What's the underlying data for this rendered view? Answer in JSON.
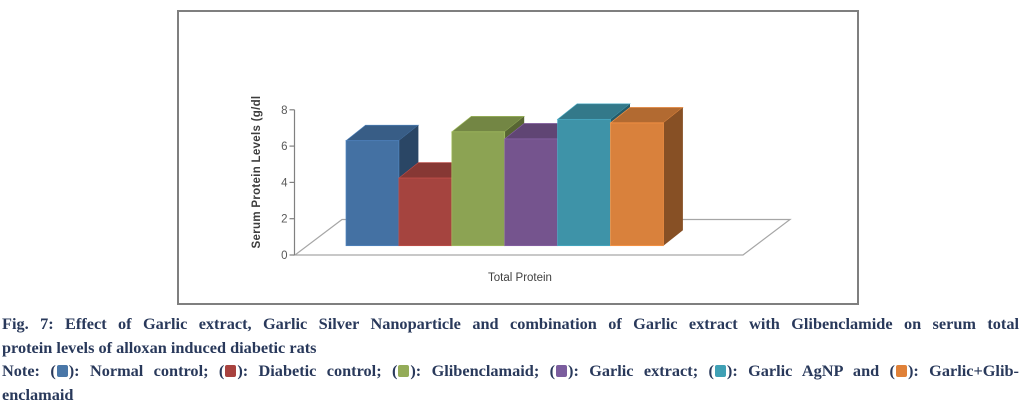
{
  "page": {
    "background": "#ffffff"
  },
  "chart": {
    "frame_border_color": "#7f7f7f",
    "plot_background": "#ffffff",
    "axis_line_color": "#808080",
    "floor_line_color": "#a6a6a6",
    "tick_label_color": "#595959",
    "axis_title_color": "#3d3d3d",
    "category_label_color": "#3f3f3f"
  },
  "chart_data": {
    "type": "bar",
    "projection": "3d",
    "title": "",
    "categories": [
      "Total Protein"
    ],
    "series": [
      {
        "name": "Normal control",
        "color": "#4471A3",
        "values": [
          5.9
        ]
      },
      {
        "name": "Diabetic control",
        "color": "#A5443F",
        "values": [
          3.8
        ]
      },
      {
        "name": "Glibenclamaid",
        "color": "#8CA353",
        "values": [
          6.4
        ]
      },
      {
        "name": "Garlic extract",
        "color": "#75548E",
        "values": [
          6.0
        ]
      },
      {
        "name": "Garlic AgNP",
        "color": "#3E93A8",
        "values": [
          7.1
        ]
      },
      {
        "name": "Garlic+Glibenclamaid",
        "color": "#D9813C",
        "values": [
          6.9
        ]
      }
    ],
    "xlabel": "",
    "ylabel": "Serum Protein Levels (g/dl",
    "y_ticks": [
      0,
      2,
      4,
      6,
      8
    ],
    "ylim": [
      0,
      8
    ],
    "grid": false,
    "legend_position": "none"
  },
  "caption": {
    "line1": "Fig. 7: Effect of Garlic extract, Garlic Silver Nanoparticle and combination of Garlic extract with Glibenclamide on serum total",
    "line2": "protein levels of alloxan induced diabetic rats",
    "text_color": "#29395b"
  },
  "note": {
    "prefix": "Note: ",
    "swatch_open": "(",
    "swatch_close": "): ",
    "entries": [
      {
        "label": "Normal control",
        "separator": "; ",
        "color": "#4A77A8"
      },
      {
        "label": "Diabetic control",
        "separator": "; ",
        "color": "#A8423F"
      },
      {
        "label": "Glibenclamaid",
        "separator": "; ",
        "color": "#94AC58"
      },
      {
        "label": "Garlic extract",
        "separator": "; ",
        "color": "#7B5D9E"
      },
      {
        "label": "Garlic AgNP",
        "separator": " and ",
        "color": "#3FA0B5"
      },
      {
        "label": "Garlic+Glib-",
        "separator": "",
        "color": "#E08138"
      }
    ],
    "continuation": "enclamaid"
  }
}
